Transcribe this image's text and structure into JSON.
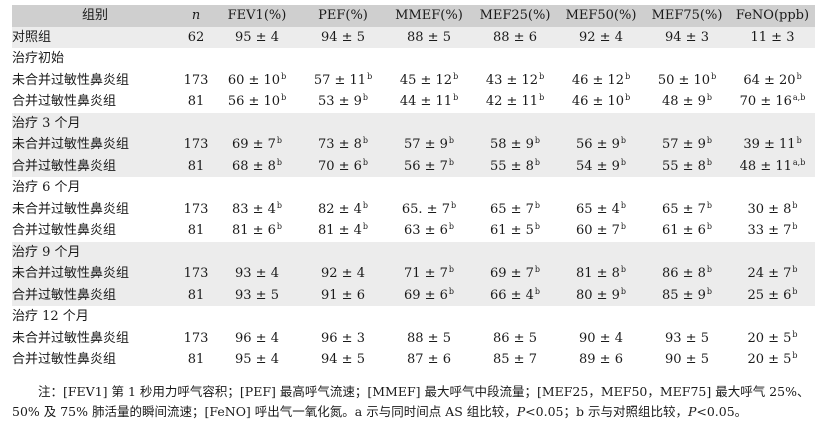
{
  "header": {
    "group": "组别",
    "n": "n",
    "fev1": "FEV1(%)",
    "pef": "PEF(%)",
    "mmef": "MMEF(%)",
    "mef25": "MEF25(%)",
    "mef50": "MEF50(%)",
    "mef75": "MEF75(%)",
    "feno": "FeNO(ppb)"
  },
  "rows": [
    {
      "kind": "data",
      "label": "对照组",
      "n": "62",
      "cells": [
        {
          "v": "95 ± 4",
          "s": ""
        },
        {
          "v": "94 ± 5",
          "s": ""
        },
        {
          "v": "88 ± 5",
          "s": ""
        },
        {
          "v": "88 ± 6",
          "s": ""
        },
        {
          "v": "92 ± 4",
          "s": ""
        },
        {
          "v": "94 ± 3",
          "s": ""
        },
        {
          "v": "11 ± 3",
          "s": ""
        }
      ]
    },
    {
      "kind": "section",
      "label": "治疗初始"
    },
    {
      "kind": "sub",
      "label": "未合并过敏性鼻炎组",
      "n": "173",
      "cells": [
        {
          "v": "60 ± 10",
          "s": "b"
        },
        {
          "v": "57 ± 11",
          "s": "b"
        },
        {
          "v": "45 ± 12",
          "s": "b"
        },
        {
          "v": "43 ± 12",
          "s": "b"
        },
        {
          "v": "46 ± 12",
          "s": "b"
        },
        {
          "v": "50 ± 10",
          "s": "b"
        },
        {
          "v": "64 ± 20",
          "s": "b"
        }
      ]
    },
    {
      "kind": "sub",
      "label": "合并过敏性鼻炎组",
      "n": "81",
      "cells": [
        {
          "v": "56 ± 10",
          "s": "b"
        },
        {
          "v": "53 ± 9",
          "s": "b"
        },
        {
          "v": "44 ± 11",
          "s": "b"
        },
        {
          "v": "42 ± 11",
          "s": "b"
        },
        {
          "v": "46 ± 10",
          "s": "b"
        },
        {
          "v": "48 ± 9",
          "s": "b"
        },
        {
          "v": "70 ± 16",
          "s": "a,b"
        }
      ]
    },
    {
      "kind": "section",
      "label": "治疗 3 个月"
    },
    {
      "kind": "sub",
      "label": "未合并过敏性鼻炎组",
      "n": "173",
      "cells": [
        {
          "v": "69 ± 7",
          "s": "b"
        },
        {
          "v": "73 ± 8",
          "s": "b"
        },
        {
          "v": "57 ± 9",
          "s": "b"
        },
        {
          "v": "58 ± 9",
          "s": "b"
        },
        {
          "v": "56 ± 9",
          "s": "b"
        },
        {
          "v": "57 ± 9",
          "s": "b"
        },
        {
          "v": "39 ± 11",
          "s": "b"
        }
      ]
    },
    {
      "kind": "sub",
      "label": "合并过敏性鼻炎组",
      "n": "81",
      "cells": [
        {
          "v": "68 ± 8",
          "s": "b"
        },
        {
          "v": "70 ± 6",
          "s": "b"
        },
        {
          "v": "56 ± 7",
          "s": "b"
        },
        {
          "v": "55 ± 8",
          "s": "b"
        },
        {
          "v": "54 ± 9",
          "s": "b"
        },
        {
          "v": "55 ± 8",
          "s": "b"
        },
        {
          "v": "48 ± 11",
          "s": "a,b"
        }
      ]
    },
    {
      "kind": "section",
      "label": "治疗 6 个月"
    },
    {
      "kind": "sub",
      "label": "未合并过敏性鼻炎组",
      "n": "173",
      "cells": [
        {
          "v": "83 ± 4",
          "s": "b"
        },
        {
          "v": "82 ± 4",
          "s": "b"
        },
        {
          "v": "65. ± 7",
          "s": "b"
        },
        {
          "v": "65 ± 7",
          "s": "b"
        },
        {
          "v": "65 ± 4",
          "s": "b"
        },
        {
          "v": "65 ± 7",
          "s": "b"
        },
        {
          "v": "30 ± 8",
          "s": "b"
        }
      ]
    },
    {
      "kind": "sub",
      "label": "合并过敏性鼻炎组",
      "n": "81",
      "cells": [
        {
          "v": "81 ± 6",
          "s": "b"
        },
        {
          "v": "81 ± 4",
          "s": "b"
        },
        {
          "v": "63 ± 6",
          "s": "b"
        },
        {
          "v": "61 ± 5",
          "s": "b"
        },
        {
          "v": "60 ± 7",
          "s": "b"
        },
        {
          "v": "61 ± 6",
          "s": "b"
        },
        {
          "v": "33 ± 7",
          "s": "b"
        }
      ]
    },
    {
      "kind": "section",
      "label": "治疗 9 个月"
    },
    {
      "kind": "sub",
      "label": "未合并过敏性鼻炎组",
      "n": "173",
      "cells": [
        {
          "v": "93 ± 4",
          "s": ""
        },
        {
          "v": "92 ± 4",
          "s": ""
        },
        {
          "v": "71 ± 7",
          "s": "b"
        },
        {
          "v": "69 ± 7",
          "s": "b"
        },
        {
          "v": "81 ± 8",
          "s": "b"
        },
        {
          "v": "86 ± 8",
          "s": "b"
        },
        {
          "v": "24 ± 7",
          "s": "b"
        }
      ]
    },
    {
      "kind": "sub",
      "label": "合并过敏性鼻炎组",
      "n": "81",
      "cells": [
        {
          "v": "93 ± 5",
          "s": ""
        },
        {
          "v": "91 ± 6",
          "s": ""
        },
        {
          "v": "69 ± 6",
          "s": "b"
        },
        {
          "v": "66 ± 4",
          "s": "b"
        },
        {
          "v": "80 ± 9",
          "s": "b"
        },
        {
          "v": "85 ± 9",
          "s": "b"
        },
        {
          "v": "25 ± 6",
          "s": "b"
        }
      ]
    },
    {
      "kind": "section",
      "label": "治疗 12 个月"
    },
    {
      "kind": "sub",
      "label": "未合并过敏性鼻炎组",
      "n": "173",
      "cells": [
        {
          "v": "96 ± 4",
          "s": ""
        },
        {
          "v": "96 ± 3",
          "s": ""
        },
        {
          "v": "88 ± 5",
          "s": ""
        },
        {
          "v": "86 ± 5",
          "s": ""
        },
        {
          "v": "90 ± 4",
          "s": ""
        },
        {
          "v": "93 ± 5",
          "s": ""
        },
        {
          "v": "20 ± 5",
          "s": "b"
        }
      ]
    },
    {
      "kind": "sub",
      "label": "合并过敏性鼻炎组",
      "n": "81",
      "cells": [
        {
          "v": "95 ± 4",
          "s": ""
        },
        {
          "v": "94 ± 5",
          "s": ""
        },
        {
          "v": "87 ± 6",
          "s": ""
        },
        {
          "v": "85 ± 7",
          "s": ""
        },
        {
          "v": "89 ± 6",
          "s": ""
        },
        {
          "v": "90 ± 5",
          "s": ""
        },
        {
          "v": "20 ± 5",
          "s": "b"
        }
      ]
    }
  ],
  "note": {
    "p1": "注：[FEV1] 第 1 秒用力呼气容积；[PEF] 最高呼气流速；[MMEF] 最大呼气中段流量；[MEF25，MEF50，MEF75] 最大呼气 25%、50% 及 75% 肺活量的瞬间流速；[FeNO] 呼出气一氧化氮。a 示与同时间点 AS 组比较，",
    "p": "P",
    "p2": "<0.05；b 示与对照组比较，",
    "p3": "<0.05。"
  },
  "colors": {
    "header_bg": "#cfcfcf",
    "shade_bg": "#ececec",
    "text": "#1a1a1a"
  }
}
